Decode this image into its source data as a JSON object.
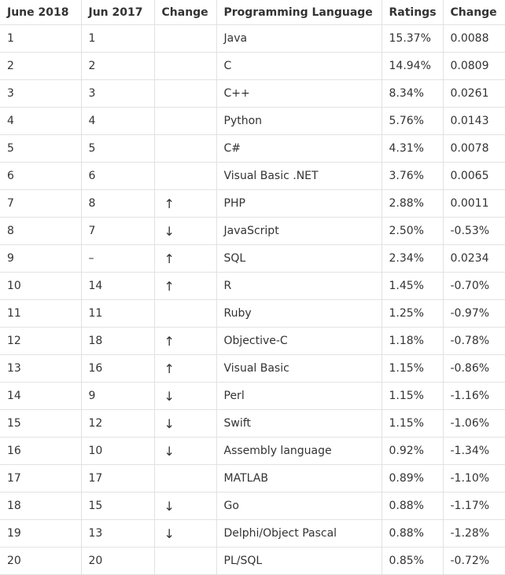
{
  "table": {
    "headers": [
      "June 2018",
      "Jun 2017",
      "Change",
      "Programming Language",
      "Ratings",
      "Change"
    ],
    "rows": [
      [
        "1",
        "1",
        null,
        "Java",
        "15.37%",
        "0.0088"
      ],
      [
        "2",
        "2",
        null,
        "C",
        "14.94%",
        "0.0809"
      ],
      [
        "3",
        "3",
        null,
        "C++",
        "8.34%",
        "0.0261"
      ],
      [
        "4",
        "4",
        null,
        "Python",
        "5.76%",
        "0.0143"
      ],
      [
        "5",
        "5",
        null,
        "C#",
        "4.31%",
        "0.0078"
      ],
      [
        "6",
        "6",
        null,
        "Visual Basic .NET",
        "3.76%",
        "0.0065"
      ],
      [
        "7",
        "8",
        "↑",
        "PHP",
        "2.88%",
        "0.0011"
      ],
      [
        "8",
        "7",
        "↓",
        "JavaScript",
        "2.50%",
        "-0.53%"
      ],
      [
        "9",
        "–",
        "↑",
        "SQL",
        "2.34%",
        "0.0234"
      ],
      [
        "10",
        "14",
        "↑",
        "R",
        "1.45%",
        "-0.70%"
      ],
      [
        "11",
        "11",
        null,
        "Ruby",
        "1.25%",
        "-0.97%"
      ],
      [
        "12",
        "18",
        "↑",
        "Objective-C",
        "1.18%",
        "-0.78%"
      ],
      [
        "13",
        "16",
        "↑",
        "Visual Basic",
        "1.15%",
        "-0.86%"
      ],
      [
        "14",
        "9",
        "↓",
        "Perl",
        "1.15%",
        "-1.16%"
      ],
      [
        "15",
        "12",
        "↓",
        "Swift",
        "1.15%",
        "-1.06%"
      ],
      [
        "16",
        "10",
        "↓",
        "Assembly language",
        "0.92%",
        "-1.34%"
      ],
      [
        "17",
        "17",
        null,
        "MATLAB",
        "0.89%",
        "-1.10%"
      ],
      [
        "18",
        "15",
        "↓",
        "Go",
        "0.88%",
        "-1.17%"
      ],
      [
        "19",
        "13",
        "↓",
        "Delphi/Object Pascal",
        "0.88%",
        "-1.28%"
      ],
      [
        "20",
        "20",
        null,
        "PL/SQL",
        "0.85%",
        "-0.72%"
      ]
    ]
  }
}
